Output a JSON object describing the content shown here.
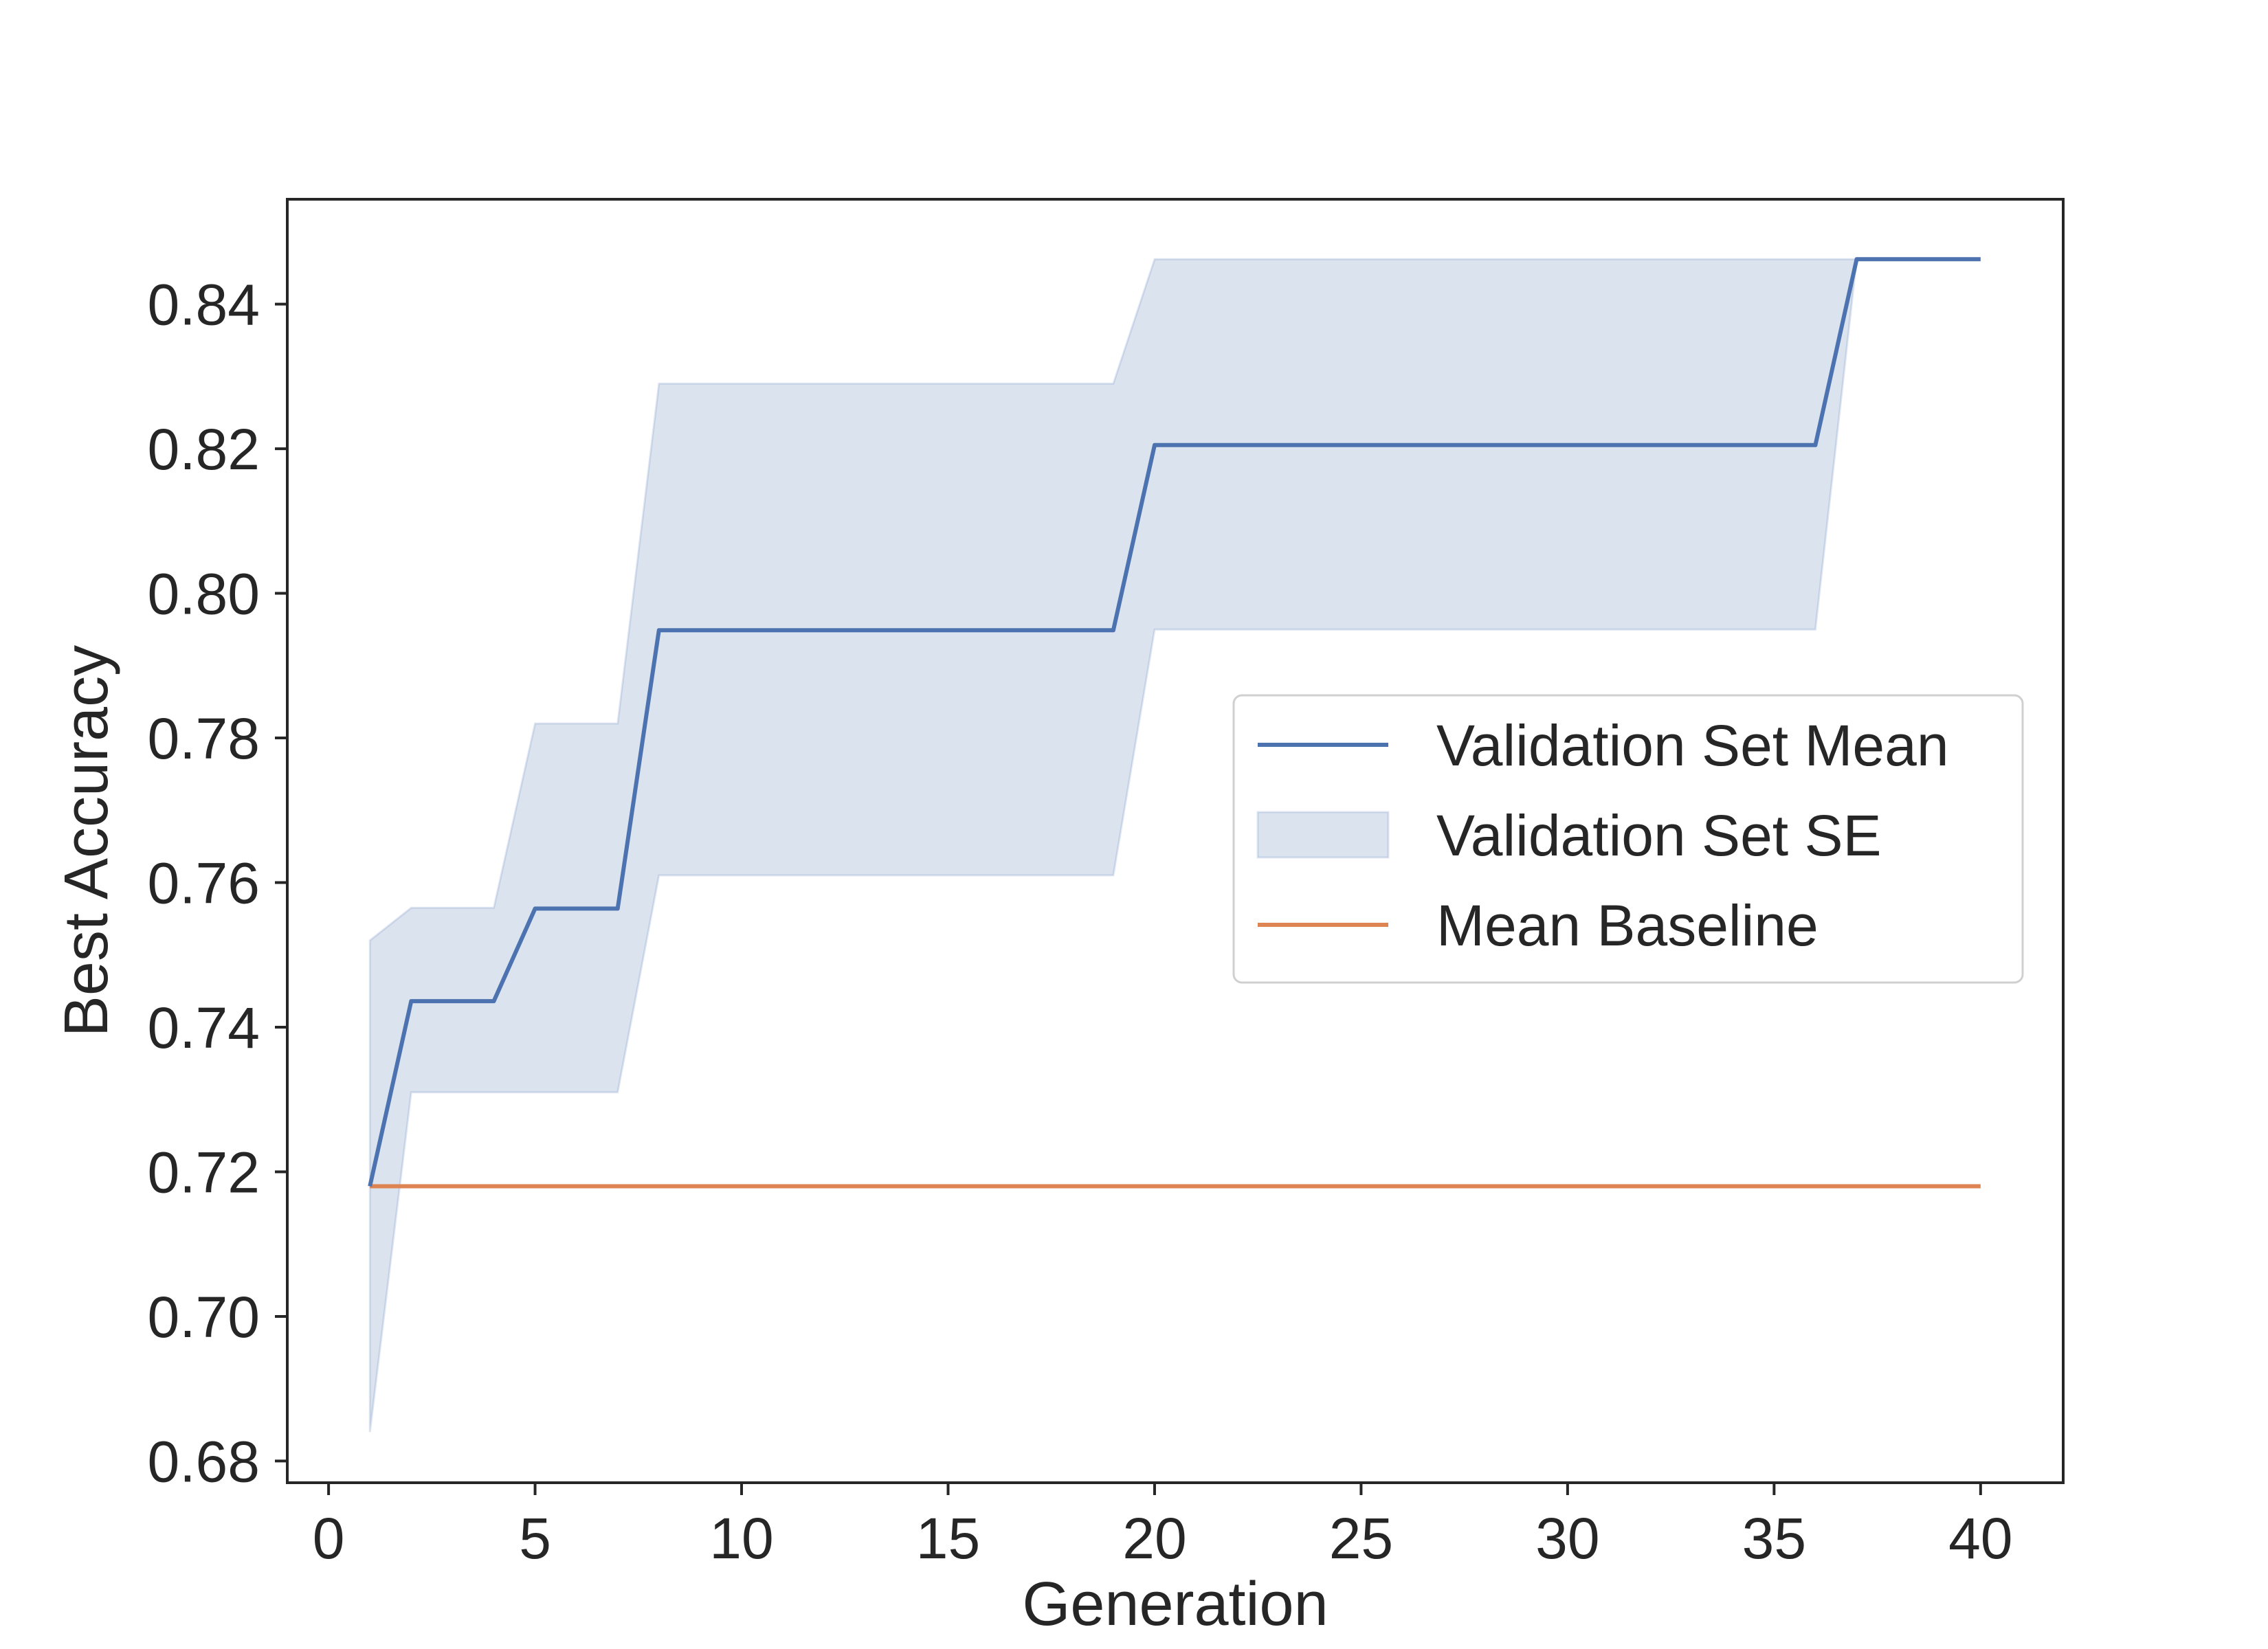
{
  "chart_data": {
    "type": "line",
    "xlabel": "Generation",
    "ylabel": "Best Accuracy",
    "xlim": [
      -1,
      42
    ],
    "ylim": [
      0.677,
      0.8545
    ],
    "xticks": [
      0,
      5,
      10,
      15,
      20,
      25,
      30,
      35,
      40
    ],
    "xtick_labels": [
      "0",
      "5",
      "10",
      "15",
      "20",
      "25",
      "30",
      "35",
      "40"
    ],
    "yticks": [
      0.68,
      0.7,
      0.72,
      0.74,
      0.76,
      0.78,
      0.8,
      0.82,
      0.84
    ],
    "ytick_labels": [
      "0.68",
      "0.70",
      "0.72",
      "0.74",
      "0.76",
      "0.78",
      "0.80",
      "0.82",
      "0.84"
    ],
    "grid": false,
    "legend_position": "center-right",
    "legend": [
      {
        "label": "Validation Set Mean",
        "kind": "line",
        "color": "#4c72b0"
      },
      {
        "label": "Validation Set SE",
        "kind": "patch",
        "color": "#4c72b0"
      },
      {
        "label": "Mean Baseline",
        "kind": "line",
        "color": "#dd8452"
      }
    ],
    "series": [
      {
        "name": "Validation Set Mean",
        "color": "#4c72b0",
        "x": [
          1,
          2,
          3,
          4,
          5,
          6,
          7,
          8,
          9,
          10,
          11,
          12,
          13,
          14,
          15,
          16,
          17,
          18,
          19,
          20,
          21,
          22,
          23,
          24,
          25,
          26,
          27,
          28,
          29,
          30,
          31,
          32,
          33,
          34,
          35,
          36,
          37,
          38,
          39,
          40
        ],
        "y": [
          0.718,
          0.7436,
          0.7436,
          0.7436,
          0.7564,
          0.7564,
          0.7564,
          0.7949,
          0.7949,
          0.7949,
          0.7949,
          0.7949,
          0.7949,
          0.7949,
          0.7949,
          0.7949,
          0.7949,
          0.7949,
          0.7949,
          0.8205,
          0.8205,
          0.8205,
          0.8205,
          0.8205,
          0.8205,
          0.8205,
          0.8205,
          0.8205,
          0.8205,
          0.8205,
          0.8205,
          0.8205,
          0.8205,
          0.8205,
          0.8205,
          0.8205,
          0.8462,
          0.8462,
          0.8462,
          0.8462
        ]
      },
      {
        "name": "Validation Set SE",
        "color": "#4c72b0",
        "fill_opacity": 0.2,
        "x": [
          1,
          2,
          3,
          4,
          5,
          6,
          7,
          8,
          9,
          10,
          11,
          12,
          13,
          14,
          15,
          16,
          17,
          18,
          19,
          20,
          21,
          22,
          23,
          24,
          25,
          26,
          27,
          28,
          29,
          30,
          31,
          32,
          33,
          34,
          35,
          36,
          37,
          38,
          39,
          40
        ],
        "lower": [
          0.684,
          0.731,
          0.731,
          0.731,
          0.731,
          0.731,
          0.731,
          0.761,
          0.761,
          0.761,
          0.761,
          0.761,
          0.761,
          0.761,
          0.761,
          0.761,
          0.761,
          0.761,
          0.761,
          0.795,
          0.795,
          0.795,
          0.795,
          0.795,
          0.795,
          0.795,
          0.795,
          0.795,
          0.795,
          0.795,
          0.795,
          0.795,
          0.795,
          0.795,
          0.795,
          0.795,
          0.8462,
          0.8462,
          0.8462,
          0.8462
        ],
        "upper": [
          0.752,
          0.7565,
          0.7565,
          0.7565,
          0.782,
          0.782,
          0.782,
          0.829,
          0.829,
          0.829,
          0.829,
          0.829,
          0.829,
          0.829,
          0.829,
          0.829,
          0.829,
          0.829,
          0.829,
          0.8462,
          0.8462,
          0.8462,
          0.8462,
          0.8462,
          0.8462,
          0.8462,
          0.8462,
          0.8462,
          0.8462,
          0.8462,
          0.8462,
          0.8462,
          0.8462,
          0.8462,
          0.8462,
          0.8462,
          0.8462,
          0.8462,
          0.8462,
          0.8462
        ]
      },
      {
        "name": "Mean Baseline",
        "color": "#dd8452",
        "x": [
          1,
          40
        ],
        "y": [
          0.718,
          0.718
        ]
      }
    ]
  }
}
